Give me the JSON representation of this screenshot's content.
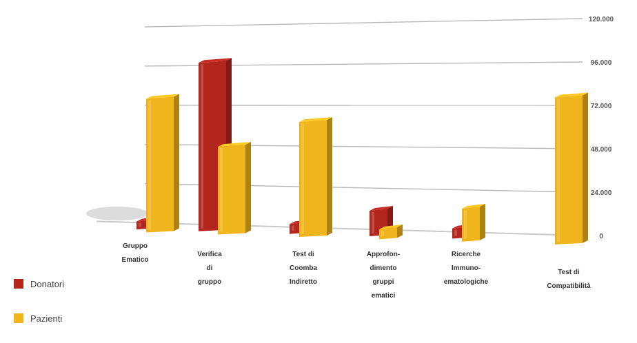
{
  "chart_data": {
    "type": "bar",
    "categories": [
      [
        "Gruppo",
        "Ematico"
      ],
      [
        "Verifica",
        "di",
        "gruppo"
      ],
      [
        "Test di",
        "Coomba",
        "Indiretto"
      ],
      [
        "Approfon-",
        "dimento",
        "gruppi",
        "ematici"
      ],
      [
        "Ricerche",
        "Immuno-",
        "ematologiche"
      ],
      [
        "Test di",
        "Compatibilità"
      ]
    ],
    "series": [
      {
        "name": "Donatori",
        "color": "#b3261e",
        "values": [
          4000,
          101000,
          5000,
          14000,
          5000,
          0
        ]
      },
      {
        "name": "Pazienti",
        "color": "#f0b41c",
        "values": [
          81000,
          52000,
          67000,
          5000,
          18000,
          81000
        ]
      }
    ],
    "y_ticks": [
      "0",
      "24.000",
      "48.000",
      "72.000",
      "96.000",
      "120.000"
    ],
    "ylim": [
      0,
      120000
    ],
    "grid": true,
    "legend_position": "bottom-left"
  }
}
